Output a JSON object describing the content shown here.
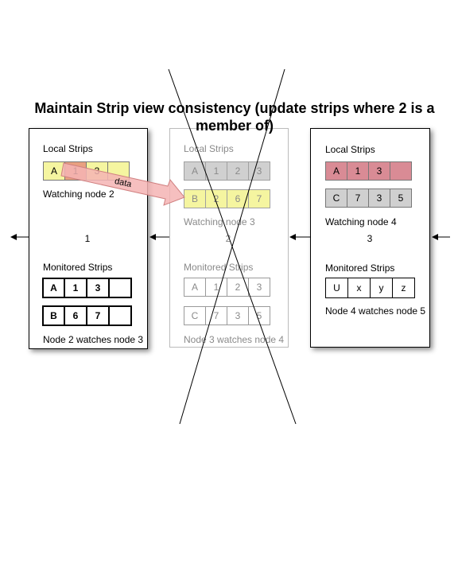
{
  "title": "Maintain Strip view consistency (update strips where 2 is a member of)",
  "colors": {
    "yellow": "#f5f5a0",
    "grey": "#d0d0d0",
    "red": "#d98b95",
    "salmon": "#e8a080",
    "arrow_fill": "#f4b4b4"
  },
  "arrow_label": "data",
  "node_left": {
    "local_title": "Local Strips",
    "local_strip": [
      "A",
      "1",
      "3",
      ""
    ],
    "watching": "Watching node 2",
    "id": "1",
    "monitored_title": "Monitored Strips",
    "monitored": [
      [
        "A",
        "1",
        "3",
        ""
      ],
      [
        "B",
        "6",
        "7",
        ""
      ]
    ],
    "watches": "Node 2 watches node 3"
  },
  "node_mid": {
    "local_title": "Local Strips",
    "local_strips": [
      [
        "A",
        "1",
        "2",
        "3"
      ],
      [
        "B",
        "2",
        "6",
        "7"
      ]
    ],
    "watching": "Watching node 3",
    "id": "2",
    "monitored_title": "Monitored Strips",
    "monitored": [
      [
        "A",
        "1",
        "2",
        "3"
      ],
      [
        "C",
        "7",
        "3",
        "5"
      ]
    ],
    "watches": "Node 3 watches node 4"
  },
  "node_right": {
    "local_title": "Local Strips",
    "local_strips": [
      [
        "A",
        "1",
        "3",
        ""
      ],
      [
        "C",
        "7",
        "3",
        "5"
      ]
    ],
    "watching": "Watching node 4",
    "id": "3",
    "monitored_title": "Monitored Strips",
    "monitored": [
      [
        "U",
        "x",
        "y",
        "z"
      ]
    ],
    "watches": "Node 4 watches node 5"
  }
}
